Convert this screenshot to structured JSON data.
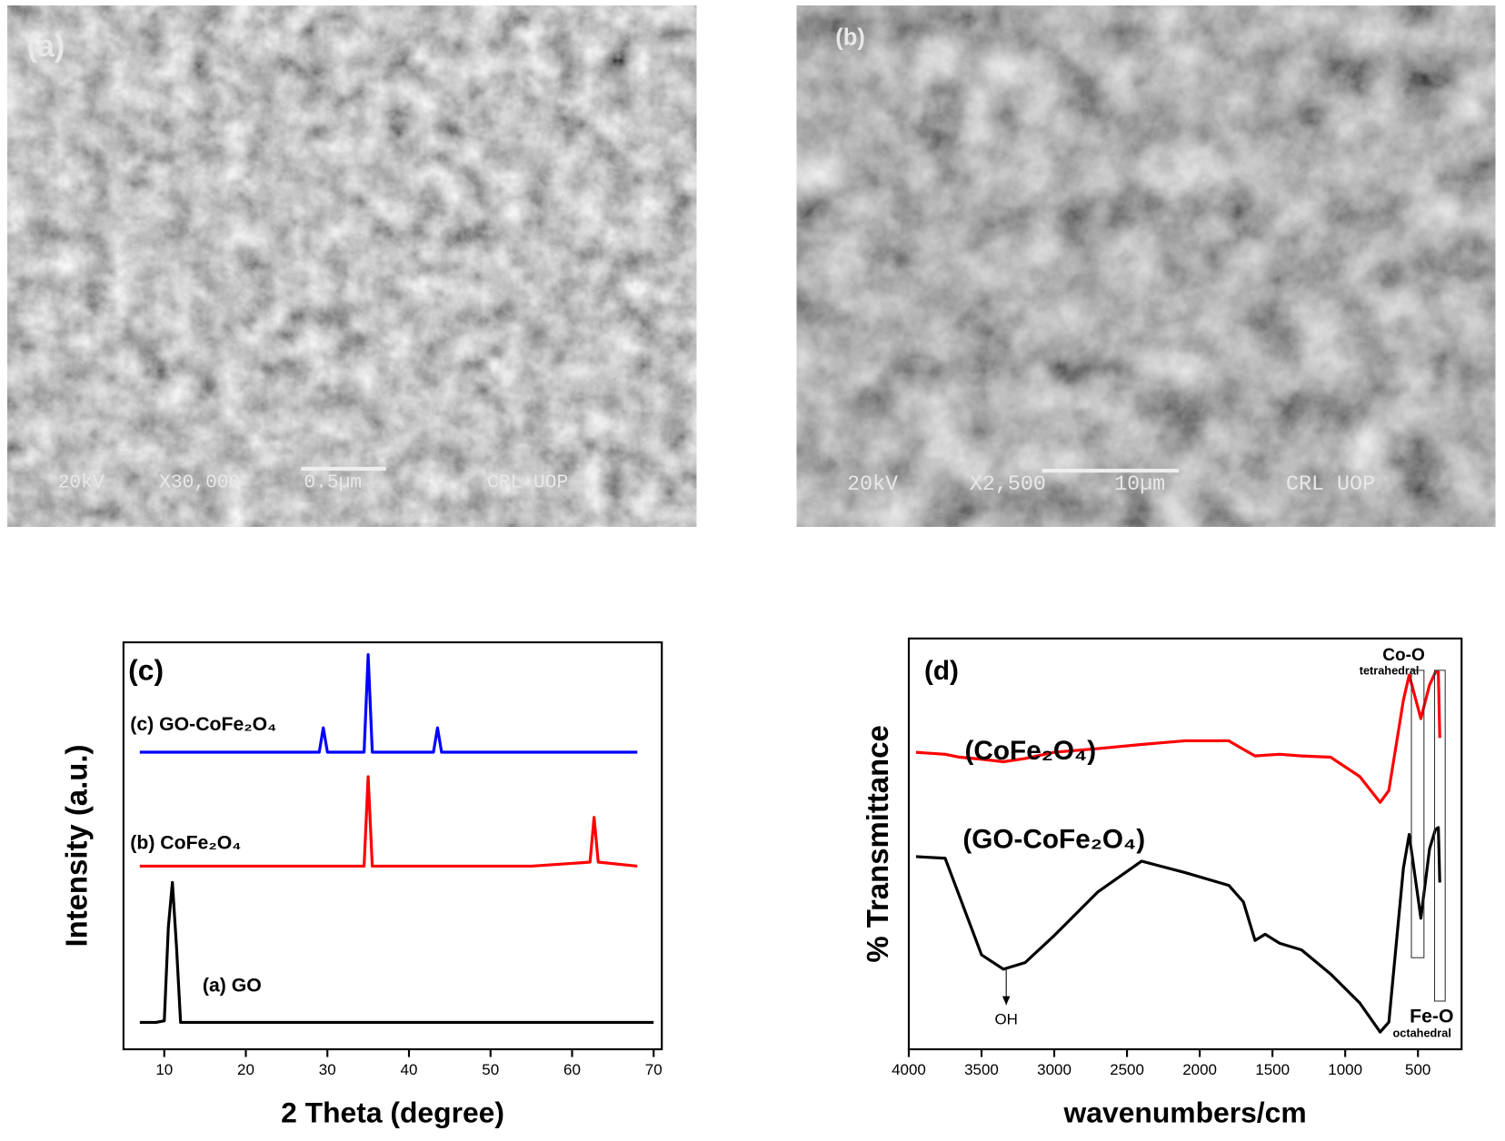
{
  "panels": [
    {
      "label": "(a)",
      "info": [
        "20kV",
        "X30,000",
        "0.5µm",
        "CRL UOP"
      ]
    },
    {
      "label": "(b)",
      "info": [
        "20kV",
        "X2,500",
        "10µm",
        "CRL UOP"
      ]
    }
  ],
  "chart_data": [
    {
      "type": "line",
      "label": "(c)",
      "xlabel": "2 Theta (degree)",
      "ylabel": "Intensity (a.u.)",
      "x": [
        7,
        9,
        10,
        10.5,
        11,
        11.5,
        12,
        14,
        20,
        29,
        29.5,
        30,
        34.5,
        35,
        35.5,
        40,
        43,
        43.5,
        44,
        50,
        55,
        62.2,
        62.7,
        63.2,
        68,
        70
      ],
      "series": [
        {
          "name": "(c) GO-CoFe₂O₄",
          "color": "#0000ff",
          "values": [
            73,
            73,
            73,
            73,
            73,
            73,
            73,
            73,
            73,
            73,
            79,
            73,
            73,
            97,
            73,
            73,
            73,
            79,
            73,
            73,
            73,
            73,
            73,
            73,
            73,
            null
          ]
        },
        {
          "name": "(b) CoFe₂O₄",
          "color": "#ff0000",
          "values": [
            45,
            45,
            45,
            45,
            45,
            45,
            45,
            45,
            45,
            45,
            45,
            45,
            45,
            67,
            45,
            45,
            45,
            45,
            45,
            45,
            45,
            46,
            57,
            46,
            45,
            null
          ]
        },
        {
          "name": "(a) GO",
          "color": "#000000",
          "values": [
            6.6,
            6.6,
            7,
            30,
            41,
            25,
            6.6,
            6.6,
            6.6,
            6.6,
            6.6,
            6.6,
            6.6,
            6.6,
            6.6,
            6.6,
            6.6,
            6.6,
            6.6,
            6.6,
            6.6,
            6.6,
            6.6,
            6.6,
            6.6,
            6.6
          ]
        }
      ],
      "xlim": [
        5,
        71
      ],
      "ylim": [
        0,
        100
      ],
      "xticks": [
        10,
        20,
        30,
        40,
        50,
        60,
        70
      ]
    },
    {
      "type": "line",
      "label": "(d)",
      "xlabel": "wavenumbers/cm",
      "ylabel": "% Transmittance",
      "x": [
        3950,
        3750,
        3650,
        3500,
        3350,
        3200,
        3000,
        2700,
        2400,
        2100,
        1800,
        1700,
        1620,
        1550,
        1450,
        1300,
        1100,
        900,
        760,
        700,
        600,
        560,
        480,
        420,
        380,
        360,
        350
      ],
      "series": [
        {
          "name": "(CoFe₂O₄)",
          "color": "#ff0000",
          "values": [
            72.3,
            71.8,
            71.1,
            70.6,
            70.0,
            70.8,
            72.3,
            73.2,
            74.2,
            75.1,
            75.1,
            73.0,
            71.4,
            71.6,
            71.8,
            71.4,
            71.1,
            66.4,
            60.1,
            63.0,
            85.0,
            91.1,
            80.5,
            88.7,
            91.8,
            91.8,
            75.8
          ]
        },
        {
          "name": "(GO-CoFe₂O₄)",
          "color": "#000000",
          "values": [
            46.9,
            46.5,
            37.1,
            23.0,
            19.5,
            21.1,
            27.7,
            38.3,
            45.8,
            43.0,
            39.9,
            35.9,
            26.5,
            28.0,
            25.8,
            24.2,
            18.3,
            11.3,
            4.2,
            6.6,
            44.1,
            52.3,
            31.9,
            48.8,
            53.5,
            54.0,
            40.6
          ]
        }
      ],
      "xlim": [
        4000,
        200
      ],
      "ylim": [
        0,
        100
      ],
      "xticks": [
        4000,
        3500,
        3000,
        2500,
        2000,
        1500,
        1000,
        500
      ],
      "annotations": [
        "OH",
        "Co-O",
        "tetrahedral",
        "Fe-O",
        "octahedral"
      ]
    }
  ]
}
